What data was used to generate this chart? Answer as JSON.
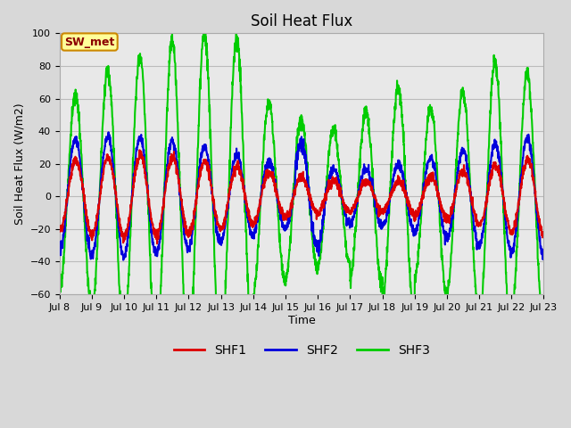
{
  "title": "Soil Heat Flux",
  "ylabel": "Soil Heat Flux (W/m2)",
  "xlabel": "Time",
  "ylim": [
    -60,
    100
  ],
  "fig_bg_color": "#d8d8d8",
  "plot_bg_color": "#e8e8e8",
  "grid_color": "#cccccc",
  "shf1_color": "#dd0000",
  "shf2_color": "#0000dd",
  "shf3_color": "#00cc00",
  "legend_labels": [
    "SHF1",
    "SHF2",
    "SHF3"
  ],
  "annotation_text": "SW_met",
  "annotation_bg": "#ffff99",
  "annotation_border": "#cc8800",
  "tick_labels": [
    "Jul 8",
    "Jul 9",
    "Jul 10",
    "Jul 11",
    "Jul 12",
    "Jul 13",
    "Jul 14",
    "Jul 15",
    "Jul 16",
    "Jul 17",
    "Jul 18",
    "Jul 19",
    "Jul 20",
    "Jul 21",
    "Jul 22",
    "Jul 23"
  ],
  "n_days": 15,
  "title_fontsize": 12,
  "axis_fontsize": 9,
  "tick_fontsize": 8,
  "legend_fontsize": 10,
  "linewidth": 1.5
}
